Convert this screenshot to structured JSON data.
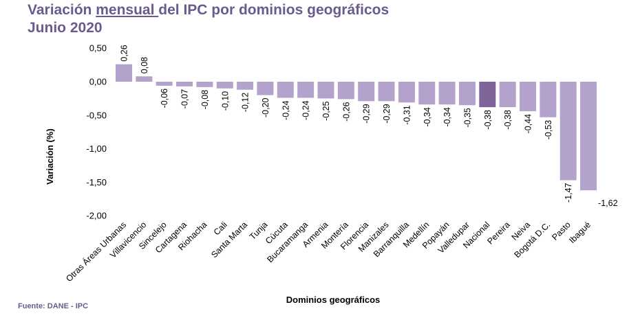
{
  "title_prefix": "Variación ",
  "title_underlined": "mensual ",
  "title_suffix": "del IPC por dominios geográficos",
  "subtitle": "Junio  2020",
  "source": "Fuente: DANE - IPC",
  "colors": {
    "bar": "#b3a3cc",
    "highlight": "#7d6499",
    "title": "#6b5a8e"
  },
  "chart_data": {
    "type": "bar",
    "xlabel": "Dominios geográficos",
    "ylabel": "Variación (%)",
    "ylim": [
      -2.0,
      0.5
    ],
    "yticks": [
      "0,50",
      "0,00",
      "-0,50",
      "-1,00",
      "-1,50",
      "-2,00"
    ],
    "yticks_values": [
      0.5,
      0.0,
      -0.5,
      -1.0,
      -1.5,
      -2.0
    ],
    "highlight": "Nacional",
    "categories": [
      "Otras Áreas Urbanas",
      "Villavicencio",
      "Sincelejo",
      "Cartagena",
      "Riohacha",
      "Cali",
      "Santa Marta",
      "Tunja",
      "Cúcuta",
      "Bucaramanga",
      "Armenia",
      "Montería",
      "Florencia",
      "Manizales",
      "Barranquilla",
      "Medellín",
      "Popayán",
      "Valledupar",
      "Nacional",
      "Pereira",
      "Neiva",
      "Bogotá D.C.",
      "Pasto",
      "Ibagué"
    ],
    "values": [
      0.26,
      0.08,
      -0.06,
      -0.07,
      -0.08,
      -0.1,
      -0.12,
      -0.2,
      -0.24,
      -0.24,
      -0.25,
      -0.26,
      -0.29,
      -0.29,
      -0.31,
      -0.34,
      -0.34,
      -0.35,
      -0.38,
      -0.38,
      -0.44,
      -0.53,
      -1.47,
      -1.62
    ],
    "value_labels": [
      "0,26",
      "0,08",
      "-0,06",
      "-0,07",
      "-0,08",
      "-0,10",
      "-0,12",
      "-0,20",
      "-0,24",
      "-0,24",
      "-0,25",
      "-0,26",
      "-0,29",
      "-0,29",
      "-0,31",
      "-0,34",
      "-0,34",
      "-0,35",
      "-0,38",
      "-0,38",
      "-0,44",
      "-0,53",
      "-1,47",
      "-1,62"
    ]
  }
}
